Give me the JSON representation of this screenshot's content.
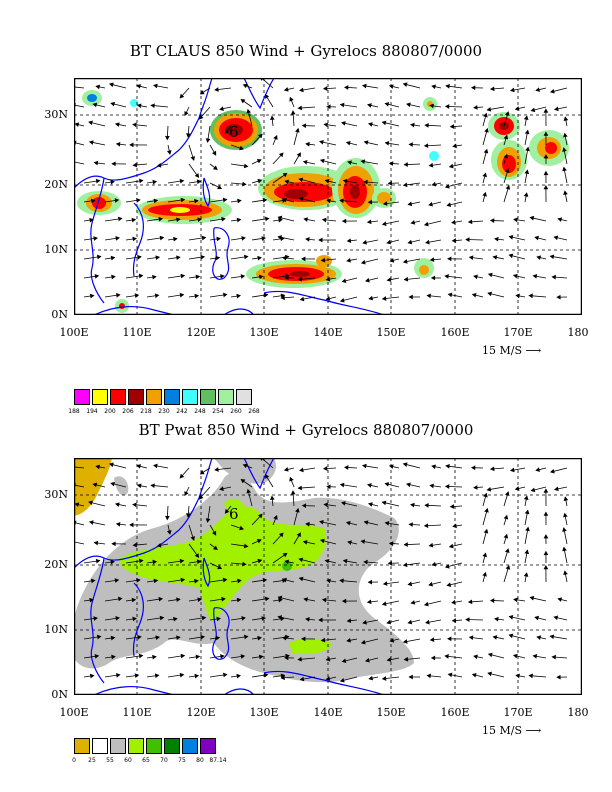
{
  "panel1": {
    "title": "BT CLAUS 850 Wind + Gyrelocs 880807/0000",
    "lat_labels": [
      "30N",
      "20N",
      "10N",
      "0N"
    ],
    "lon_labels": [
      "100E",
      "110E",
      "120E",
      "130E",
      "140E",
      "150E",
      "160E",
      "170E",
      "180"
    ],
    "ref_vector": "15 M/S",
    "storm_label": "6",
    "colorbar": {
      "labels": [
        "188",
        "194",
        "200",
        "206",
        "218",
        "230",
        "242",
        "248",
        "254",
        "260",
        "268"
      ],
      "colors": [
        "#ff00ff",
        "#ffff00",
        "#ff0000",
        "#a00000",
        "#f0a000",
        "#0080e0",
        "#40ffff",
        "#60c060",
        "#a0f0a0",
        "#e0e0e0"
      ]
    }
  },
  "panel2": {
    "title": "BT Pwat 850 Wind + Gyrelocs 880807/0000",
    "lat_labels": [
      "30N",
      "20N",
      "10N",
      "0N"
    ],
    "lon_labels": [
      "100E",
      "110E",
      "120E",
      "130E",
      "140E",
      "150E",
      "160E",
      "170E",
      "180"
    ],
    "ref_vector": "15 M/S",
    "storm_label": "6",
    "colorbar": {
      "labels": [
        "0",
        "25",
        "55",
        "60",
        "65",
        "70",
        "75",
        "80",
        "87.14"
      ],
      "colors": [
        "#e0b000",
        "#ffffff",
        "#bebebe",
        "#a0f000",
        "#40c000",
        "#008000",
        "#0080e0",
        "#8000c0"
      ]
    }
  }
}
